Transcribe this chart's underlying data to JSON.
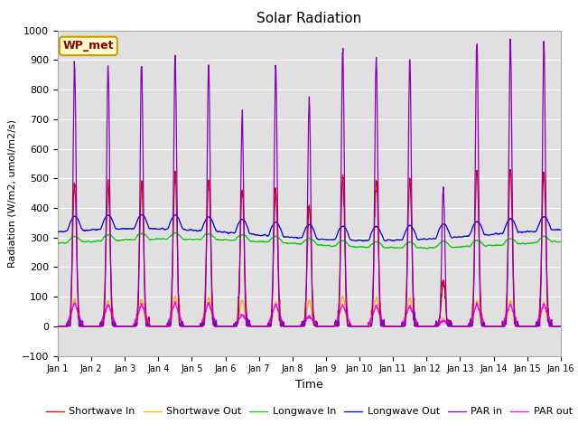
{
  "title": "Solar Radiation",
  "xlabel": "Time",
  "ylabel": "Radiation (W/m2, umol/m2/s)",
  "ylim": [
    -100,
    1000
  ],
  "xlim": [
    0,
    15
  ],
  "xtick_labels": [
    "Jan 1",
    "Jan 2",
    "Jan 3",
    "Jan 4",
    "Jan 5",
    "Jan 6",
    "Jan 7",
    "Jan 8",
    "Jan 9",
    "Jan 10",
    "Jan 11",
    "Jan 12",
    "Jan 13",
    "Jan 14",
    "Jan 15",
    "Jan 16"
  ],
  "annotation": "WP_met",
  "bg_color": "#e0e0e0",
  "grid_color": "white",
  "series": {
    "Shortwave In": {
      "color": "#dd0000",
      "lw": 0.9
    },
    "Shortwave Out": {
      "color": "#ffaa00",
      "lw": 0.9
    },
    "Longwave In": {
      "color": "#00cc00",
      "lw": 0.9
    },
    "Longwave Out": {
      "color": "#0000cc",
      "lw": 0.9
    },
    "PAR in": {
      "color": "#8800bb",
      "lw": 0.9
    },
    "PAR out": {
      "color": "#ff00ff",
      "lw": 0.9
    }
  },
  "par_in_peaks": [
    890,
    880,
    880,
    920,
    890,
    710,
    880,
    770,
    930,
    910,
    910,
    470,
    970,
    970,
    960
  ],
  "sw_in_peaks": [
    480,
    480,
    480,
    510,
    495,
    460,
    455,
    410,
    500,
    500,
    500,
    150,
    525,
    525,
    520
  ],
  "sw_out_peaks": [
    90,
    85,
    90,
    100,
    95,
    85,
    80,
    85,
    100,
    95,
    95,
    25,
    85,
    85,
    80
  ],
  "par_out_peaks": [
    80,
    75,
    75,
    80,
    80,
    40,
    75,
    35,
    75,
    70,
    70,
    20,
    75,
    75,
    75
  ],
  "lw_in_base": 280,
  "lw_out_base": 310
}
